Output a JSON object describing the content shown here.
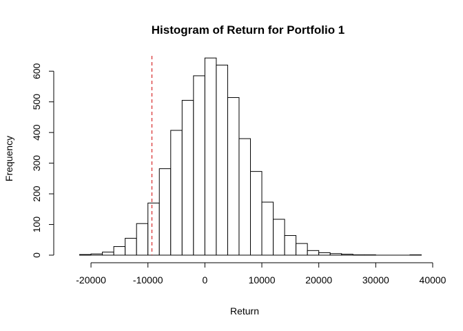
{
  "chart_data": {
    "type": "bar",
    "title": "Histogram of Return for Portfolio 1",
    "xlabel": "Return",
    "ylabel": "Frequency",
    "xlim": [
      -24000,
      40000
    ],
    "ylim": [
      0,
      650
    ],
    "x_ticks": [
      -20000,
      -10000,
      0,
      10000,
      20000,
      30000,
      40000
    ],
    "y_ticks": [
      0,
      100,
      200,
      300,
      400,
      500,
      600
    ],
    "bin_width": 2000,
    "bins": [
      {
        "start": -22000,
        "end": -20000,
        "count": 2
      },
      {
        "start": -20000,
        "end": -18000,
        "count": 4
      },
      {
        "start": -18000,
        "end": -16000,
        "count": 10
      },
      {
        "start": -16000,
        "end": -14000,
        "count": 28
      },
      {
        "start": -14000,
        "end": -12000,
        "count": 55
      },
      {
        "start": -12000,
        "end": -10000,
        "count": 103
      },
      {
        "start": -10000,
        "end": -8000,
        "count": 170
      },
      {
        "start": -8000,
        "end": -6000,
        "count": 282
      },
      {
        "start": -6000,
        "end": -4000,
        "count": 407
      },
      {
        "start": -4000,
        "end": -2000,
        "count": 505
      },
      {
        "start": -2000,
        "end": 0,
        "count": 585
      },
      {
        "start": 0,
        "end": 2000,
        "count": 643
      },
      {
        "start": 2000,
        "end": 4000,
        "count": 620
      },
      {
        "start": 4000,
        "end": 6000,
        "count": 514
      },
      {
        "start": 6000,
        "end": 8000,
        "count": 380
      },
      {
        "start": 8000,
        "end": 10000,
        "count": 273
      },
      {
        "start": 10000,
        "end": 12000,
        "count": 173
      },
      {
        "start": 12000,
        "end": 14000,
        "count": 117
      },
      {
        "start": 14000,
        "end": 16000,
        "count": 64
      },
      {
        "start": 16000,
        "end": 18000,
        "count": 38
      },
      {
        "start": 18000,
        "end": 20000,
        "count": 15
      },
      {
        "start": 20000,
        "end": 22000,
        "count": 8
      },
      {
        "start": 22000,
        "end": 24000,
        "count": 5
      },
      {
        "start": 24000,
        "end": 26000,
        "count": 3
      },
      {
        "start": 26000,
        "end": 28000,
        "count": 1
      },
      {
        "start": 28000,
        "end": 30000,
        "count": 1
      },
      {
        "start": 30000,
        "end": 32000,
        "count": 0
      },
      {
        "start": 32000,
        "end": 34000,
        "count": 0
      },
      {
        "start": 34000,
        "end": 36000,
        "count": 0
      },
      {
        "start": 36000,
        "end": 38000,
        "count": 1
      }
    ],
    "reference_line": {
      "x": -9300,
      "color": "#d62728",
      "style": "dashed"
    },
    "grid": false,
    "colors": {
      "bar_fill": "#ffffff",
      "bar_stroke": "#000000"
    }
  }
}
